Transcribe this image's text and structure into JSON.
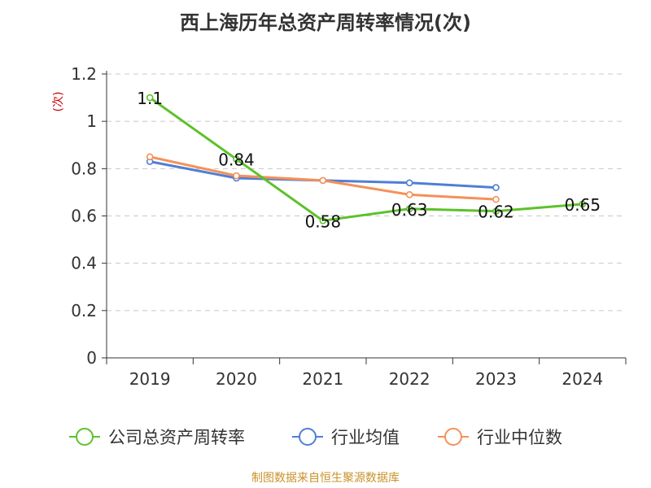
{
  "chart_data": {
    "type": "line",
    "title": "西上海历年总资产周转率情况(次)",
    "ylabel": "(次)",
    "categories": [
      "2019",
      "2020",
      "2021",
      "2022",
      "2023",
      "2024"
    ],
    "ylim": [
      0,
      1.2
    ],
    "yticks": [
      "0",
      "0.2",
      "0.4",
      "0.6",
      "0.8",
      "1",
      "1.2"
    ],
    "grid": true,
    "legend_position": "bottom",
    "series": [
      {
        "name": "公司总资产周转率",
        "color": "#5cc22a",
        "values": [
          1.1,
          0.84,
          0.58,
          0.63,
          0.62,
          0.65
        ],
        "labels": [
          "1.1",
          "0.84",
          "0.58",
          "0.63",
          "0.62",
          "0.65"
        ]
      },
      {
        "name": "行业均值",
        "color": "#4f7fd6",
        "values": [
          0.83,
          0.76,
          0.75,
          0.74,
          0.72,
          null
        ]
      },
      {
        "name": "行业中位数",
        "color": "#f59058",
        "values": [
          0.85,
          0.77,
          0.75,
          0.69,
          0.67,
          null
        ]
      }
    ]
  },
  "footer": {
    "source": "制图数据来自恒生聚源数据库"
  }
}
